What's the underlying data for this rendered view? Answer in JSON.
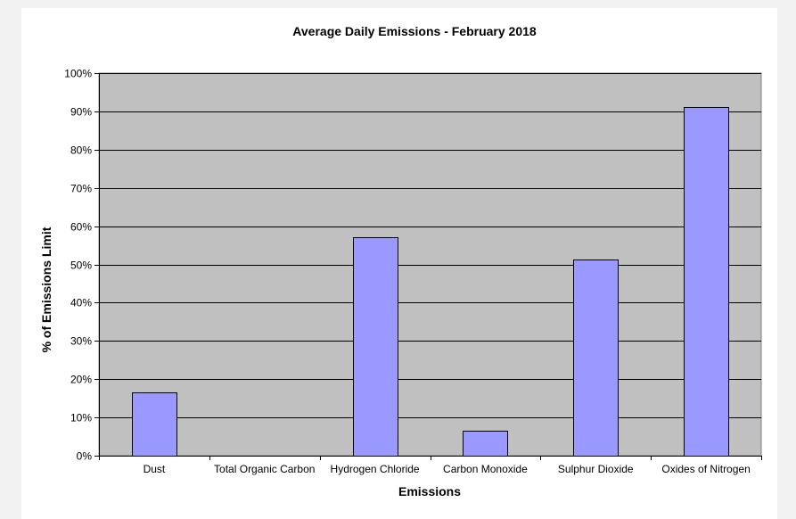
{
  "chart_data": {
    "type": "bar",
    "title": "Average Daily Emissions - February 2018",
    "xlabel": "Emissions",
    "ylabel": "% of Emissions Limit",
    "categories": [
      "Dust",
      "Total Organic Carbon",
      "Hydrogen Chloride",
      "Carbon Monoxide",
      "Sulphur Dioxide",
      "Oxides of Nitrogen"
    ],
    "values": [
      16.5,
      0,
      57,
      6.5,
      51.2,
      91.2
    ],
    "ylim": [
      0,
      100
    ],
    "yticks": [
      "0%",
      "10%",
      "20%",
      "30%",
      "40%",
      "50%",
      "60%",
      "70%",
      "80%",
      "90%",
      "100%"
    ],
    "grid": true,
    "legend": "none",
    "colors": {
      "bar_fill": "#9999ff",
      "bar_stroke": "#000000",
      "plot_background": "#c0c0c0",
      "gridline": "#000000"
    }
  }
}
